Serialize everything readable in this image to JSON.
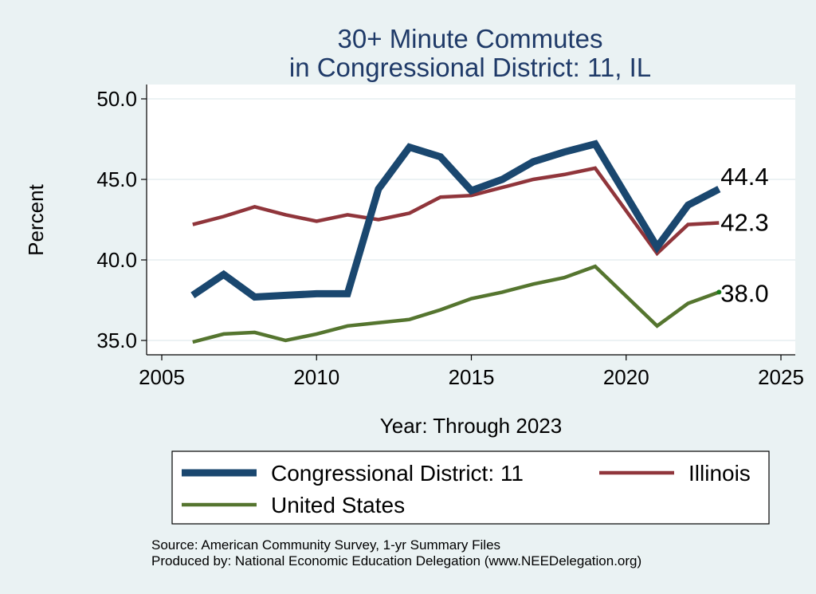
{
  "chart_data": {
    "type": "line",
    "title_lines": [
      "30+ Minute Commutes",
      "in Congressional District:  11, IL"
    ],
    "xlabel": "Year: Through 2023",
    "ylabel": "Percent",
    "xlim": [
      2005,
      2025
    ],
    "ylim": [
      35,
      50
    ],
    "x_ticks": [
      "2005",
      "2010",
      "2015",
      "2020",
      "2025"
    ],
    "y_ticks": [
      "35.0",
      "40.0",
      "45.0",
      "50.0"
    ],
    "grid": true,
    "legend_position": "bottom",
    "series": [
      {
        "name": "Congressional District:  11",
        "color": "#1a476f",
        "style": "thick",
        "end_label": "44.4",
        "x": [
          2006,
          2007,
          2008,
          2009,
          2010,
          2011,
          2012,
          2013,
          2014,
          2015,
          2016,
          2017,
          2018,
          2019,
          2021,
          2022,
          2023
        ],
        "y": [
          37.8,
          39.1,
          37.7,
          37.8,
          37.9,
          37.9,
          44.4,
          47.0,
          46.4,
          44.3,
          45.0,
          46.1,
          46.7,
          47.2,
          40.8,
          43.4,
          44.4
        ]
      },
      {
        "name": "Illinois",
        "color": "#90353b",
        "style": "medium",
        "end_label": "42.3",
        "x": [
          2006,
          2007,
          2008,
          2009,
          2010,
          2011,
          2012,
          2013,
          2014,
          2015,
          2016,
          2017,
          2018,
          2019,
          2021,
          2022,
          2023
        ],
        "y": [
          42.2,
          42.7,
          43.3,
          42.8,
          42.4,
          42.8,
          42.5,
          42.9,
          43.9,
          44.0,
          44.5,
          45.0,
          45.3,
          45.7,
          40.4,
          42.2,
          42.3
        ]
      },
      {
        "name": "United States",
        "color": "#55752f",
        "style": "medium",
        "end_label": "38.0",
        "x": [
          2006,
          2007,
          2008,
          2009,
          2010,
          2011,
          2012,
          2013,
          2014,
          2015,
          2016,
          2017,
          2018,
          2019,
          2021,
          2022,
          2023
        ],
        "y": [
          34.9,
          35.4,
          35.5,
          35.0,
          35.4,
          35.9,
          36.1,
          36.3,
          36.9,
          37.6,
          38.0,
          38.5,
          38.9,
          39.6,
          35.9,
          37.3,
          38.0
        ]
      }
    ],
    "source_lines": [
      "Source: American Community Survey, 1-yr Summary Files",
      "Produced by: National Economic Education Delegation (www.NEEDelegation.org)"
    ]
  }
}
